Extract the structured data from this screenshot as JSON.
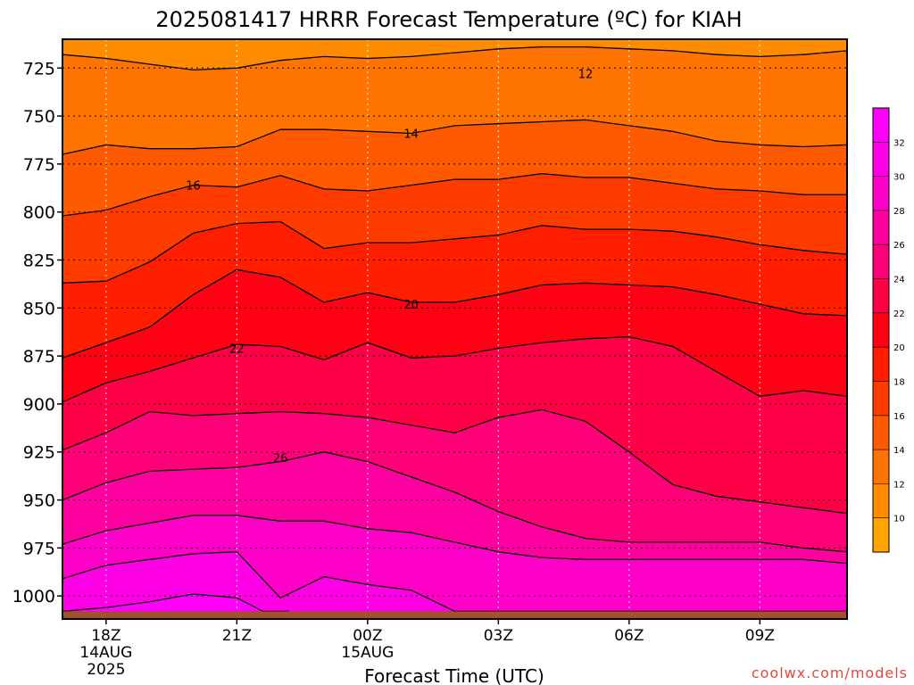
{
  "chart_data": {
    "type": "heatmap",
    "title": "2025081417 HRRR Forecast Temperature (ºC) for KIAH",
    "xlabel": "Forecast Time (UTC)",
    "ylabel": "",
    "credit": "coolwx.com/models",
    "x_ticks": [
      {
        "hour": 1,
        "label": "18Z",
        "sub1": "14AUG",
        "sub2": "2025"
      },
      {
        "hour": 4,
        "label": "21Z",
        "sub1": "",
        "sub2": ""
      },
      {
        "hour": 7,
        "label": "00Z",
        "sub1": "15AUG",
        "sub2": ""
      },
      {
        "hour": 10,
        "label": "03Z",
        "sub1": "",
        "sub2": ""
      },
      {
        "hour": 13,
        "label": "06Z",
        "sub1": "",
        "sub2": ""
      },
      {
        "hour": 16,
        "label": "09Z",
        "sub1": "",
        "sub2": ""
      }
    ],
    "y_ticks": [
      "725",
      "750",
      "775",
      "800",
      "825",
      "850",
      "875",
      "900",
      "925",
      "950",
      "975",
      "1000"
    ],
    "y_tick_values": [
      725,
      750,
      775,
      800,
      825,
      850,
      875,
      900,
      925,
      950,
      975,
      1000
    ],
    "x_range_hours": [
      0,
      18
    ],
    "y_range_hpa": [
      710,
      1012
    ],
    "surface_level_hpa": 1008,
    "grid": true,
    "colorbar": {
      "levels": [
        8,
        10,
        12,
        14,
        16,
        18,
        20,
        22,
        24,
        26,
        28,
        30,
        32,
        34
      ],
      "tick_labels": [
        "10",
        "12",
        "14",
        "16",
        "18",
        "20",
        "22",
        "24",
        "26",
        "28",
        "30",
        "32"
      ],
      "colors": [
        "#ffa500",
        "#ff8c00",
        "#ff7300",
        "#ff5a00",
        "#ff3c00",
        "#ff1e00",
        "#ff0014",
        "#ff0046",
        "#ff0078",
        "#ff00a0",
        "#ff00c8",
        "#ff00e6",
        "#ff00ff"
      ]
    },
    "contour_labels": [
      {
        "text": "12",
        "hour": 12,
        "p": 728
      },
      {
        "text": "14",
        "hour": 8,
        "p": 759
      },
      {
        "text": "16",
        "hour": 3,
        "p": 786
      },
      {
        "text": "20",
        "hour": 8,
        "p": 848
      },
      {
        "text": "22",
        "hour": 4,
        "p": 871
      },
      {
        "text": "26",
        "hour": 5,
        "p": 928
      }
    ],
    "contours": [
      {
        "temp": 12,
        "hours": [
          0,
          1,
          2,
          3,
          4,
          5,
          6,
          7,
          8,
          9,
          10,
          11,
          12,
          13,
          14,
          15,
          16,
          17,
          18
        ],
        "p": [
          718,
          720,
          723,
          726,
          725,
          721,
          719,
          720,
          719,
          717,
          715,
          714,
          714,
          715,
          716,
          718,
          719,
          718,
          716
        ]
      },
      {
        "temp": 14,
        "hours": [
          0,
          1,
          2,
          3,
          4,
          5,
          6,
          7,
          8,
          9,
          10,
          11,
          12,
          13,
          14,
          15,
          16,
          17,
          18
        ],
        "p": [
          770,
          765,
          767,
          767,
          766,
          757,
          757,
          758,
          759,
          755,
          754,
          753,
          752,
          755,
          758,
          763,
          765,
          766,
          765
        ]
      },
      {
        "temp": 16,
        "hours": [
          0,
          1,
          2,
          3,
          4,
          5,
          6,
          7,
          8,
          9,
          10,
          11,
          12,
          13,
          14,
          15,
          16,
          17,
          18
        ],
        "p": [
          802,
          799,
          792,
          786,
          787,
          781,
          788,
          789,
          786,
          783,
          783,
          780,
          782,
          782,
          785,
          788,
          789,
          791,
          791
        ]
      },
      {
        "temp": 18,
        "hours": [
          0,
          1,
          2,
          3,
          4,
          5,
          6,
          7,
          8,
          9,
          10,
          11,
          12,
          13,
          14,
          15,
          16,
          17,
          18
        ],
        "p": [
          837,
          836,
          826,
          811,
          806,
          805,
          819,
          816,
          816,
          814,
          812,
          807,
          809,
          809,
          810,
          813,
          817,
          820,
          822
        ]
      },
      {
        "temp": 20,
        "hours": [
          0,
          1,
          2,
          3,
          4,
          5,
          6,
          7,
          8,
          9,
          10,
          11,
          12,
          13,
          14,
          15,
          16,
          17,
          18
        ],
        "p": [
          876,
          868,
          860,
          843,
          830,
          834,
          847,
          842,
          847,
          847,
          843,
          838,
          837,
          838,
          839,
          843,
          848,
          853,
          854
        ]
      },
      {
        "temp": 22,
        "hours": [
          0,
          1,
          2,
          3,
          4,
          5,
          6,
          7,
          8,
          9,
          10,
          11,
          12,
          13,
          14,
          15,
          16,
          17,
          18
        ],
        "p": [
          899,
          889,
          883,
          876,
          869,
          870,
          877,
          868,
          876,
          875,
          871,
          868,
          866,
          865,
          870,
          883,
          896,
          893,
          896
        ]
      },
      {
        "temp": 24,
        "hours": [
          0,
          1,
          2,
          3,
          4,
          5,
          6,
          7,
          8,
          9,
          10,
          11,
          12,
          13,
          14,
          15,
          16,
          17,
          18
        ],
        "p": [
          924,
          915,
          904,
          906,
          905,
          904,
          905,
          907,
          911,
          915,
          907,
          903,
          909,
          925,
          942,
          948,
          951,
          954,
          957
        ]
      },
      {
        "temp": 26,
        "hours": [
          0,
          1,
          2,
          3,
          4,
          5,
          6,
          7,
          8,
          9,
          10,
          11,
          12,
          13,
          14,
          15,
          16,
          17,
          18
        ],
        "p": [
          950,
          941,
          935,
          934,
          933,
          930,
          925,
          930,
          938,
          946,
          956,
          964,
          970,
          972,
          972,
          972,
          972,
          975,
          977
        ]
      },
      {
        "temp": 28,
        "hours": [
          0,
          1,
          2,
          3,
          4,
          5,
          6,
          7,
          8,
          9,
          10,
          11,
          12,
          13,
          14,
          15,
          16,
          17,
          18
        ],
        "p": [
          973,
          966,
          962,
          958,
          958,
          961,
          961,
          965,
          967,
          972,
          977,
          980,
          981,
          981,
          981,
          981,
          981,
          981,
          983
        ]
      },
      {
        "temp": 30,
        "hours": [
          0,
          1,
          2,
          3,
          4,
          5,
          6,
          7,
          8,
          9,
          10,
          11,
          12,
          13,
          14,
          15,
          16,
          17,
          18
        ],
        "p": [
          991,
          984,
          981,
          978,
          977,
          1001,
          990,
          994,
          997,
          1008,
          1008,
          1008,
          1008,
          1008,
          1008,
          1008,
          1008,
          1008,
          1008
        ]
      },
      {
        "temp": 32,
        "hours": [
          0,
          1,
          2,
          3,
          4,
          4.6,
          5.2
        ],
        "p": [
          1008,
          1006,
          1003,
          999,
          1001,
          1008,
          1008
        ]
      }
    ]
  }
}
